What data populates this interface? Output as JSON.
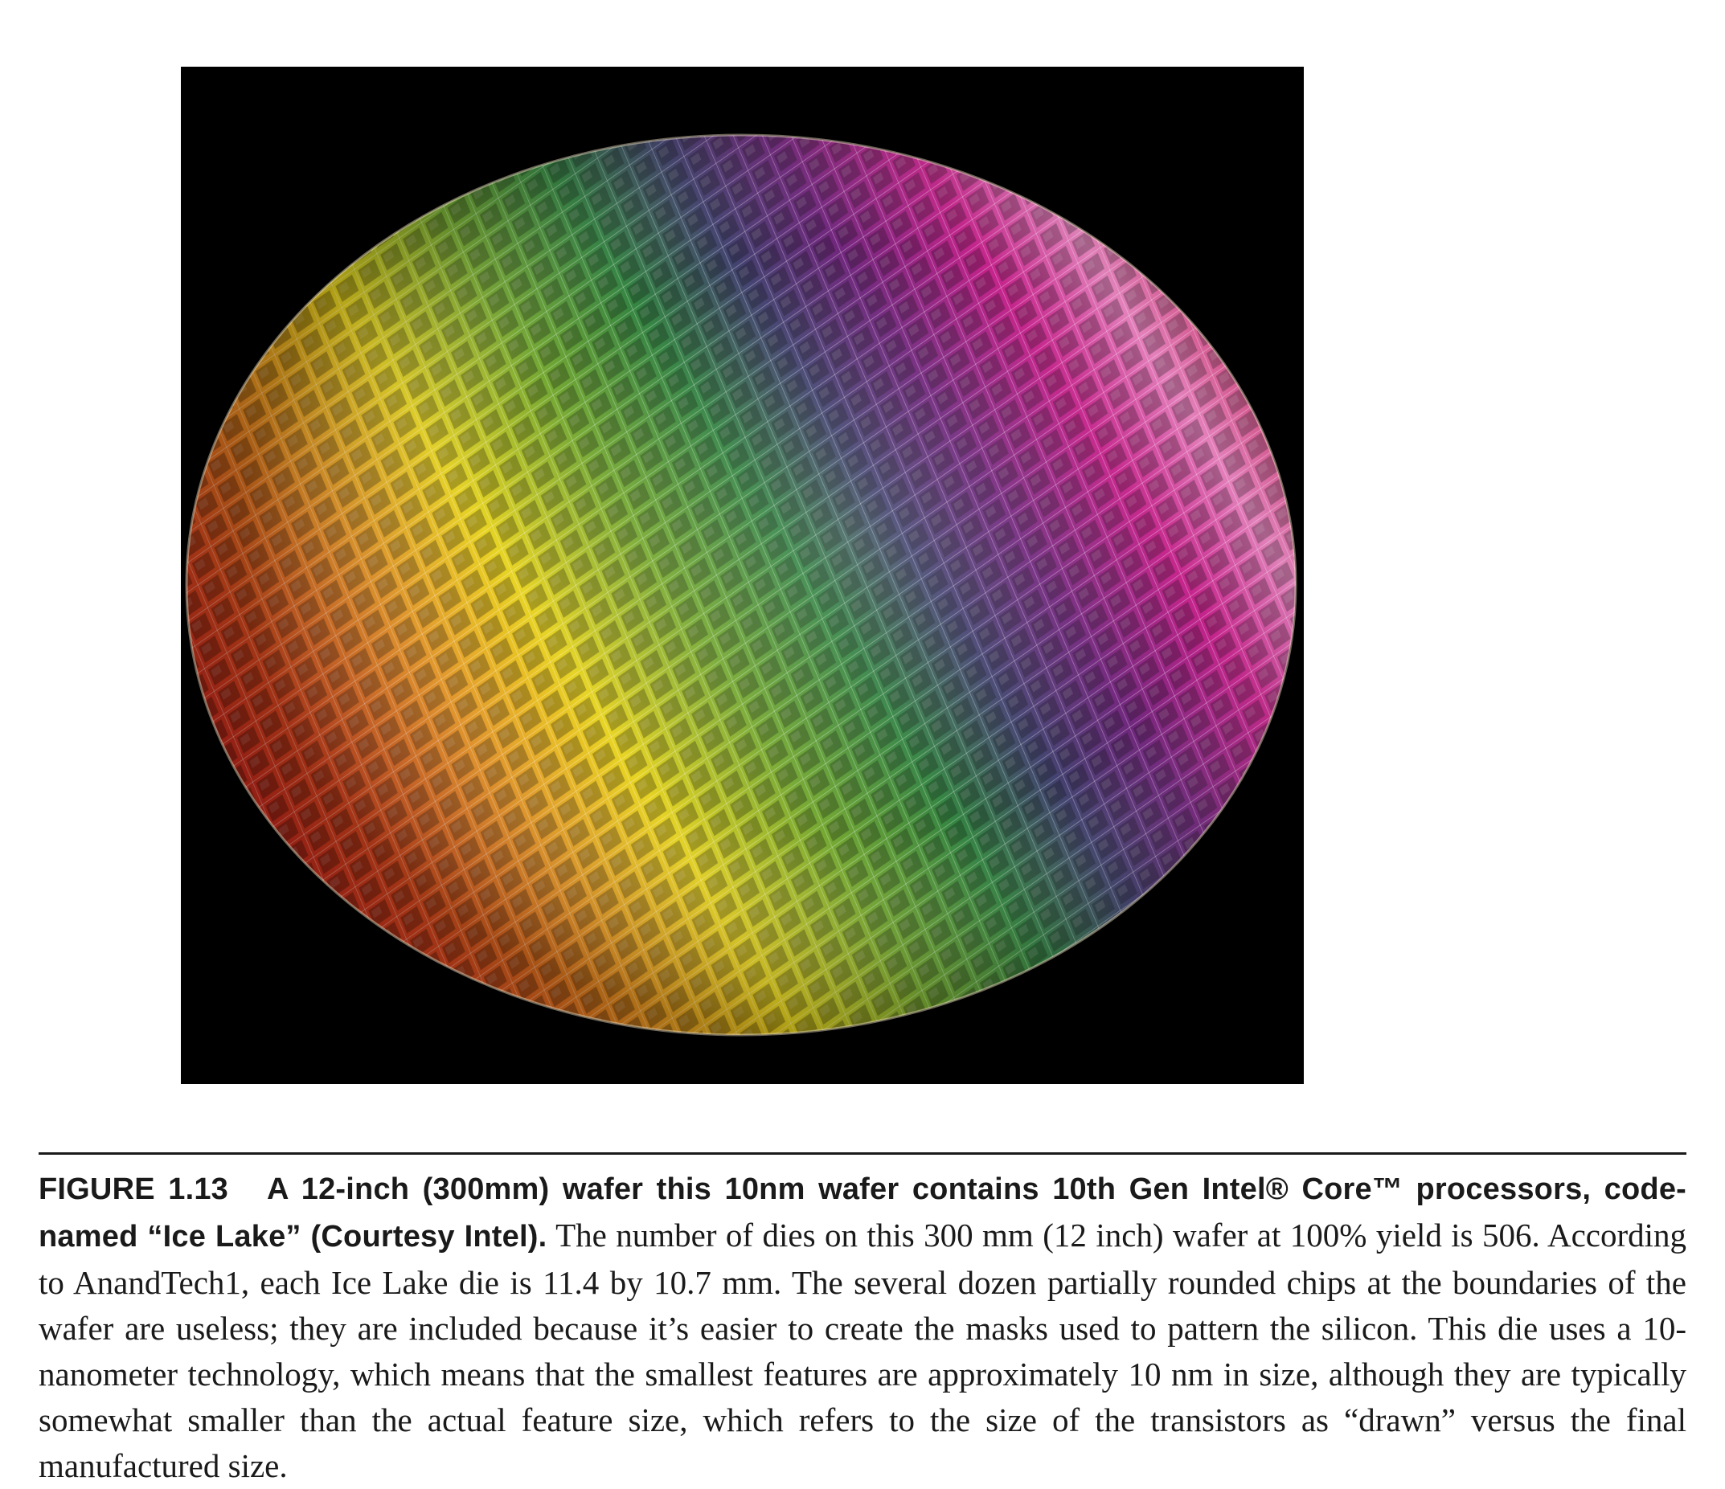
{
  "figure": {
    "image_alt": "A 12-inch (300mm) wafer this 10nm wafer contains 10th Gen Intel® Core™ processors, code-named “Ice Lake” (Courtesy Intel).",
    "colors": {
      "background": "#000000",
      "red": "#c8171c",
      "orange": "#e8821c",
      "yellow": "#e6d21a",
      "green": "#2f8f2a",
      "purple": "#4a1a6a",
      "magenta": "#d0188a",
      "pink": "#e088c0"
    }
  },
  "caption": {
    "label": "FIGURE 1.13",
    "title": "A 12-inch (300mm) wafer this 10nm wafer contains 10th Gen Intel® Core™ processors, code-named “Ice Lake” (Courtesy Intel).",
    "body": "The number of dies on this 300 mm (12 inch) wafer at 100% yield is 506. According to AnandTech1, each Ice Lake die is 11.4 by 10.7 mm. The several dozen partially rounded chips at the boundaries of the wafer are useless; they are included because it’s easier to create the masks used to pattern the silicon. This die uses a 10-nanometer technology, which means that the smallest features are approximately 10 nm in size, although they are typically somewhat smaller than the actual feature size, which refers to the size of the transistors as “drawn” versus the final manufactured size."
  }
}
